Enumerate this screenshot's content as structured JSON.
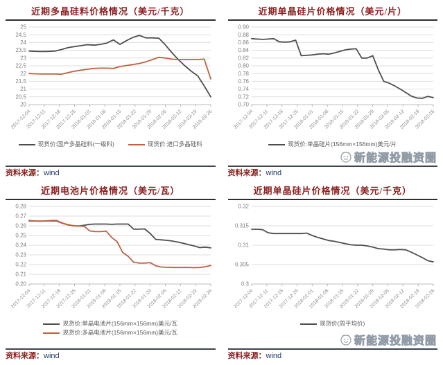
{
  "source": {
    "label": "资料来源：",
    "value": "wind"
  },
  "watermark": {
    "icon": "mascot-logo",
    "text": "新能源投融资圈"
  },
  "colors": {
    "title": "#8b2020",
    "dark_series": "#4d4d4d",
    "orange_series": "#c0603f",
    "grid": "#dedede",
    "axis_text": "#8c8c8c",
    "legend_text": "#595959",
    "source_label": "#8b2020",
    "source_value": "#1f3864",
    "watermark": "#939da7"
  },
  "x_categories": [
    "2017-12-04",
    "2017-12-11",
    "2017-12-18",
    "2017-12-25",
    "2018-01-01",
    "2018-01-08",
    "2018-01-15",
    "2018-01-22",
    "2018-01-29",
    "2018-02-05",
    "2018-02-12",
    "2018-02-19",
    "2018-02-26"
  ],
  "chart_data": [
    {
      "id": "polysilicon-material",
      "type": "line",
      "title": "近期多晶硅料价格情况（美元/千克）",
      "ylim": [
        20,
        25
      ],
      "yticks": [
        "25",
        "24.5",
        "24",
        "23.5",
        "23",
        "22.5",
        "22",
        "21.5",
        "21",
        "20.5",
        "20"
      ],
      "grid": true,
      "legend_position": "bottom",
      "legend_layout": "row",
      "watermark": false,
      "series": [
        {
          "name": "现货价:国产多晶硅料(一级料)",
          "color": "#4d4d4d",
          "values": [
            23.45,
            23.43,
            23.42,
            23.43,
            23.45,
            23.55,
            23.67,
            23.74,
            23.8,
            23.86,
            23.83,
            23.88,
            23.97,
            24.17,
            23.88,
            24.12,
            24.33,
            24.46,
            24.3,
            24.3,
            24.28,
            23.85,
            23.35,
            22.9,
            22.5,
            22.15,
            21.85,
            21.2,
            20.5
          ]
        },
        {
          "name": "现货价:进口多晶硅料",
          "color": "#c0603f",
          "values": [
            22.0,
            21.98,
            21.97,
            21.97,
            21.97,
            21.96,
            22.06,
            22.15,
            22.22,
            22.28,
            22.33,
            22.35,
            22.35,
            22.33,
            22.45,
            22.52,
            22.58,
            22.65,
            22.76,
            22.9,
            23.05,
            23.0,
            22.93,
            22.9,
            22.9,
            22.9,
            22.9,
            22.93,
            21.65
          ]
        }
      ]
    },
    {
      "id": "mono-wafer-usd-per-piece",
      "type": "line",
      "title": "近期单晶硅片价格情况（美元/片）",
      "ylim": [
        0.7,
        0.9
      ],
      "yticks": [
        "0.90",
        "0.88",
        "0.86",
        "0.84",
        "0.82",
        "0.80",
        "0.78",
        "0.76",
        "0.74",
        "0.72",
        "0.70"
      ],
      "grid": true,
      "legend_position": "bottom",
      "legend_layout": "row",
      "watermark": true,
      "series": [
        {
          "name": "现货价:单晶硅片(156mm×156mm)美元/片",
          "color": "#4d4d4d",
          "values": [
            0.87,
            0.869,
            0.868,
            0.869,
            0.87,
            0.862,
            0.861,
            0.862,
            0.866,
            0.826,
            0.827,
            0.828,
            0.83,
            0.831,
            0.83,
            0.833,
            0.837,
            0.841,
            0.843,
            0.844,
            0.82,
            0.82,
            0.826,
            0.79,
            0.76,
            0.755,
            0.748,
            0.74,
            0.731,
            0.722,
            0.717,
            0.716,
            0.721,
            0.718
          ]
        }
      ]
    },
    {
      "id": "solar-cell",
      "type": "line",
      "title": "近期电池片价格情况（美元/瓦）",
      "ylim": [
        0.2,
        0.28
      ],
      "yticks": [
        "0.28",
        "0.27",
        "0.26",
        "0.25",
        "0.24",
        "0.23",
        "0.22",
        "0.21",
        "0.20"
      ],
      "grid": true,
      "legend_position": "bottom",
      "legend_layout": "column",
      "watermark": false,
      "series": [
        {
          "name": "现货价:单晶电池片(156mm×156mm)美元/瓦",
          "color": "#4d4d4d",
          "values": [
            0.265,
            0.265,
            0.2648,
            0.265,
            0.265,
            0.265,
            0.2628,
            0.261,
            0.26,
            0.2598,
            0.2605,
            0.2615,
            0.2618,
            0.2618,
            0.2618,
            0.2615,
            0.2618,
            0.2618,
            0.2618,
            0.2565,
            0.2565,
            0.2568,
            0.252,
            0.246,
            0.2455,
            0.245,
            0.2443,
            0.2432,
            0.242,
            0.2405,
            0.2392,
            0.2375,
            0.238,
            0.2372
          ]
        },
        {
          "name": "现货价:多晶电池片(156mm×156mm)美元/瓦",
          "color": "#c0603f",
          "values": [
            0.2655,
            0.265,
            0.2648,
            0.265,
            0.2655,
            0.2655,
            0.263,
            0.2612,
            0.2602,
            0.2598,
            0.2595,
            0.2548,
            0.254,
            0.254,
            0.2545,
            0.248,
            0.2435,
            0.2325,
            0.2285,
            0.2225,
            0.2215,
            0.2215,
            0.222,
            0.2188,
            0.2175,
            0.2172,
            0.217,
            0.217,
            0.217,
            0.217,
            0.2168,
            0.217,
            0.2178,
            0.219
          ]
        }
      ]
    },
    {
      "id": "mono-wafer-usd-per-kg",
      "type": "line",
      "title": "近期单晶硅片价格情况（美元/千克）",
      "ylim": [
        0.3,
        0.32
      ],
      "yticks": [
        "0.32",
        "0.315",
        "0.31",
        "0.305",
        "0.3"
      ],
      "grid": true,
      "legend_position": "bottom",
      "legend_layout": "row",
      "watermark": true,
      "series": [
        {
          "name": "现货价(周平均价)",
          "color": "#4d4d4d",
          "values": [
            0.3141,
            0.3141,
            0.314,
            0.3132,
            0.313,
            0.313,
            0.313,
            0.313,
            0.313,
            0.313,
            0.3131,
            0.3125,
            0.312,
            0.3116,
            0.3112,
            0.311,
            0.3107,
            0.3104,
            0.3101,
            0.31,
            0.31,
            0.3098,
            0.3095,
            0.3091,
            0.309,
            0.3088,
            0.3088,
            0.3089,
            0.3088,
            0.3082,
            0.3075,
            0.3068,
            0.306,
            0.3057
          ]
        }
      ]
    }
  ]
}
